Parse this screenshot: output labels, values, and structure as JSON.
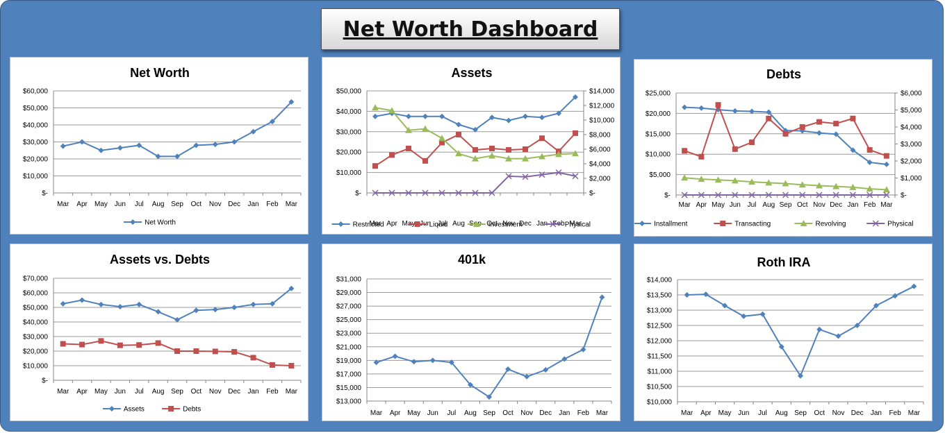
{
  "dashboard": {
    "title": "Net Worth Dashboard"
  },
  "colors": {
    "frame": "#4f81bd",
    "blue": "#4f81bd",
    "red": "#c0504d",
    "green": "#9bbb59",
    "purple": "#8064a2"
  },
  "chart_data": [
    {
      "id": "net-worth",
      "type": "line",
      "title": "Net Worth",
      "categories": [
        "Mar",
        "Apr",
        "May",
        "Jun",
        "Jul",
        "Aug",
        "Sep",
        "Oct",
        "Nov",
        "Dec",
        "Jan",
        "Feb",
        "Mar"
      ],
      "y_ticks": [
        "$-",
        "$10,000",
        "$20,000",
        "$30,000",
        "$40,000",
        "$50,000",
        "$60,000"
      ],
      "ylim": [
        0,
        60000
      ],
      "series": [
        {
          "name": "Net Worth",
          "axis": "left",
          "marker": "diamond",
          "color": "#4f81bd",
          "values": [
            27500,
            30000,
            25000,
            26500,
            28000,
            21500,
            21500,
            28000,
            28500,
            30000,
            36000,
            42000,
            53500
          ]
        }
      ],
      "legend": "bottom"
    },
    {
      "id": "assets",
      "type": "line",
      "title": "Assets",
      "categories": [
        "Mar",
        "Apr",
        "May",
        "Jun",
        "Jul",
        "Aug",
        "Sep",
        "Oct",
        "Nov",
        "Dec",
        "Jan",
        "Feb",
        "Mar"
      ],
      "y_ticks": [
        "$-",
        "$10,000",
        "$20,000",
        "$30,000",
        "$40,000",
        "$50,000"
      ],
      "ylim": [
        0,
        50000
      ],
      "y2_ticks": [
        "$-",
        "$2,000",
        "$4,000",
        "$6,000",
        "$8,000",
        "$10,000",
        "$12,000",
        "$14,000"
      ],
      "y2lim": [
        0,
        14000
      ],
      "series": [
        {
          "name": "Restricted",
          "axis": "left",
          "marker": "diamond",
          "color": "#4f81bd",
          "values": [
            37500,
            39000,
            37500,
            37500,
            37500,
            33500,
            31000,
            37000,
            35500,
            37500,
            37000,
            39000,
            47000
          ]
        },
        {
          "name": "Liquid",
          "axis": "right",
          "marker": "square",
          "color": "#c0504d",
          "values": [
            3700,
            5200,
            6100,
            4400,
            6900,
            8000,
            5900,
            6100,
            5900,
            6000,
            7500,
            5700,
            8200
          ]
        },
        {
          "name": "Investment",
          "axis": "right",
          "marker": "triangle",
          "color": "#9bbb59",
          "values": [
            11700,
            11300,
            8600,
            8800,
            7500,
            5400,
            4700,
            5100,
            4700,
            4700,
            5000,
            5300,
            5400
          ]
        },
        {
          "name": "Physical",
          "axis": "right",
          "marker": "x",
          "color": "#8064a2",
          "values": [
            0,
            0,
            0,
            0,
            0,
            0,
            0,
            0,
            2300,
            2200,
            2500,
            2800,
            2300
          ]
        }
      ],
      "legend": "bottom"
    },
    {
      "id": "debts",
      "type": "line",
      "title": "Debts",
      "categories": [
        "Mar",
        "Apr",
        "May",
        "Jun",
        "Jul",
        "Aug",
        "Sep",
        "Oct",
        "Nov",
        "Dec",
        "Jan",
        "Feb",
        "Mar"
      ],
      "y_ticks": [
        "$-",
        "$5,000",
        "$10,000",
        "$15,000",
        "$20,000",
        "$25,000"
      ],
      "ylim": [
        0,
        25000
      ],
      "y2_ticks": [
        "$-",
        "$1,000",
        "$2,000",
        "$3,000",
        "$4,000",
        "$5,000",
        "$6,000"
      ],
      "y2lim": [
        0,
        6000
      ],
      "series": [
        {
          "name": "Installment",
          "axis": "left",
          "marker": "diamond",
          "color": "#4f81bd",
          "values": [
            21500,
            21300,
            20900,
            20600,
            20500,
            20300,
            15800,
            15700,
            15200,
            14900,
            11000,
            8000,
            7500
          ]
        },
        {
          "name": "Transacting",
          "axis": "right",
          "marker": "square",
          "color": "#c0504d",
          "values": [
            2600,
            2250,
            5300,
            2700,
            3100,
            4500,
            3600,
            4000,
            4300,
            4200,
            4500,
            2650,
            2300
          ]
        },
        {
          "name": "Revolving",
          "axis": "left",
          "marker": "triangle",
          "color": "#9bbb59",
          "values": [
            4200,
            3900,
            3700,
            3500,
            3200,
            3000,
            2800,
            2500,
            2300,
            2100,
            1900,
            1500,
            1300
          ]
        },
        {
          "name": "Physical",
          "axis": "right",
          "marker": "x",
          "color": "#8064a2",
          "values": [
            0,
            0,
            0,
            0,
            0,
            0,
            0,
            0,
            0,
            0,
            0,
            0,
            0
          ]
        }
      ],
      "legend": "bottom"
    },
    {
      "id": "assets-vs-debts",
      "type": "line",
      "title": "Assets vs. Debts",
      "categories": [
        "Mar",
        "Apr",
        "May",
        "Jun",
        "Jul",
        "Aug",
        "Sep",
        "Oct",
        "Nov",
        "Dec",
        "Jan",
        "Feb",
        "Mar"
      ],
      "y_ticks": [
        "$-",
        "$10,000",
        "$20,000",
        "$30,000",
        "$40,000",
        "$50,000",
        "$60,000",
        "$70,000"
      ],
      "ylim": [
        0,
        70000
      ],
      "series": [
        {
          "name": "Assets",
          "axis": "left",
          "marker": "diamond",
          "color": "#4f81bd",
          "values": [
            52500,
            55000,
            52000,
            50500,
            52000,
            47000,
            41500,
            48000,
            48500,
            50000,
            52000,
            52500,
            63000
          ]
        },
        {
          "name": "Debts",
          "axis": "left",
          "marker": "square",
          "color": "#c0504d",
          "values": [
            25000,
            24500,
            27000,
            24000,
            24200,
            25500,
            20000,
            20000,
            19800,
            19500,
            15500,
            10500,
            10000
          ]
        }
      ],
      "legend": "bottom"
    },
    {
      "id": "401k",
      "type": "line",
      "title": "401k",
      "categories": [
        "Mar",
        "Apr",
        "May",
        "Jun",
        "Jul",
        "Aug",
        "Sep",
        "Oct",
        "Nov",
        "Dec",
        "Jan",
        "Feb",
        "Mar"
      ],
      "y_ticks": [
        "$13,000",
        "$15,000",
        "$17,000",
        "$19,000",
        "$21,000",
        "$23,000",
        "$25,000",
        "$27,000",
        "$29,000",
        "$31,000"
      ],
      "ylim": [
        13000,
        31000
      ],
      "series": [
        {
          "name": "",
          "axis": "left",
          "marker": "diamond",
          "color": "#4f81bd",
          "values": [
            18700,
            19600,
            18800,
            19000,
            18700,
            15400,
            13600,
            17700,
            16600,
            17600,
            19200,
            20600,
            28300
          ]
        }
      ],
      "legend": "none"
    },
    {
      "id": "roth-ira",
      "type": "line",
      "title": "Roth IRA",
      "categories": [
        "Mar",
        "Apr",
        "May",
        "Jun",
        "Jul",
        "Aug",
        "Sep",
        "Oct",
        "Nov",
        "Dec",
        "Jan",
        "Feb",
        "Mar"
      ],
      "y_ticks": [
        "$10,000",
        "$10,500",
        "$11,000",
        "$11,500",
        "$12,000",
        "$12,500",
        "$13,000",
        "$13,500",
        "$14,000"
      ],
      "ylim": [
        10000,
        14000
      ],
      "series": [
        {
          "name": "",
          "axis": "left",
          "marker": "diamond",
          "color": "#4f81bd",
          "values": [
            13500,
            13520,
            13150,
            12800,
            12870,
            11800,
            10850,
            12370,
            12150,
            12500,
            13150,
            13470,
            13780
          ]
        }
      ],
      "legend": "none"
    }
  ]
}
